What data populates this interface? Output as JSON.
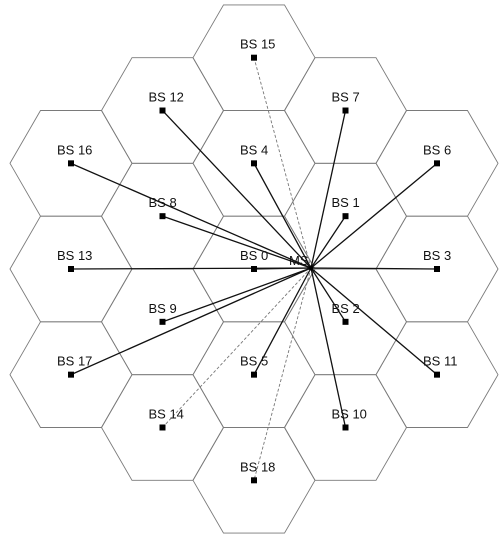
{
  "mobile_station": {
    "label": "MS"
  },
  "base_stations": [
    {
      "id": "bs-0",
      "label": "BS 0",
      "link": "solid"
    },
    {
      "id": "bs-1",
      "label": "BS 1",
      "link": "solid"
    },
    {
      "id": "bs-2",
      "label": "BS 2",
      "link": "solid"
    },
    {
      "id": "bs-3",
      "label": "BS 3",
      "link": "solid"
    },
    {
      "id": "bs-4",
      "label": "BS 4",
      "link": "solid"
    },
    {
      "id": "bs-5",
      "label": "BS 5",
      "link": "solid"
    },
    {
      "id": "bs-6",
      "label": "BS 6",
      "link": "solid"
    },
    {
      "id": "bs-7",
      "label": "BS 7",
      "link": "solid"
    },
    {
      "id": "bs-8",
      "label": "BS 8",
      "link": "solid"
    },
    {
      "id": "bs-9",
      "label": "BS 9",
      "link": "solid"
    },
    {
      "id": "bs-10",
      "label": "BS 10",
      "link": "solid"
    },
    {
      "id": "bs-11",
      "label": "BS 11",
      "link": "solid"
    },
    {
      "id": "bs-12",
      "label": "BS 12",
      "link": "solid"
    },
    {
      "id": "bs-13",
      "label": "BS 13",
      "link": "solid"
    },
    {
      "id": "bs-14",
      "label": "BS 14",
      "link": "dashed"
    },
    {
      "id": "bs-15",
      "label": "BS 15",
      "link": "dashed"
    },
    {
      "id": "bs-16",
      "label": "BS 16",
      "link": "solid"
    },
    {
      "id": "bs-17",
      "label": "BS 17",
      "link": "solid"
    },
    {
      "id": "bs-18",
      "label": "BS 18",
      "link": "dashed"
    }
  ]
}
